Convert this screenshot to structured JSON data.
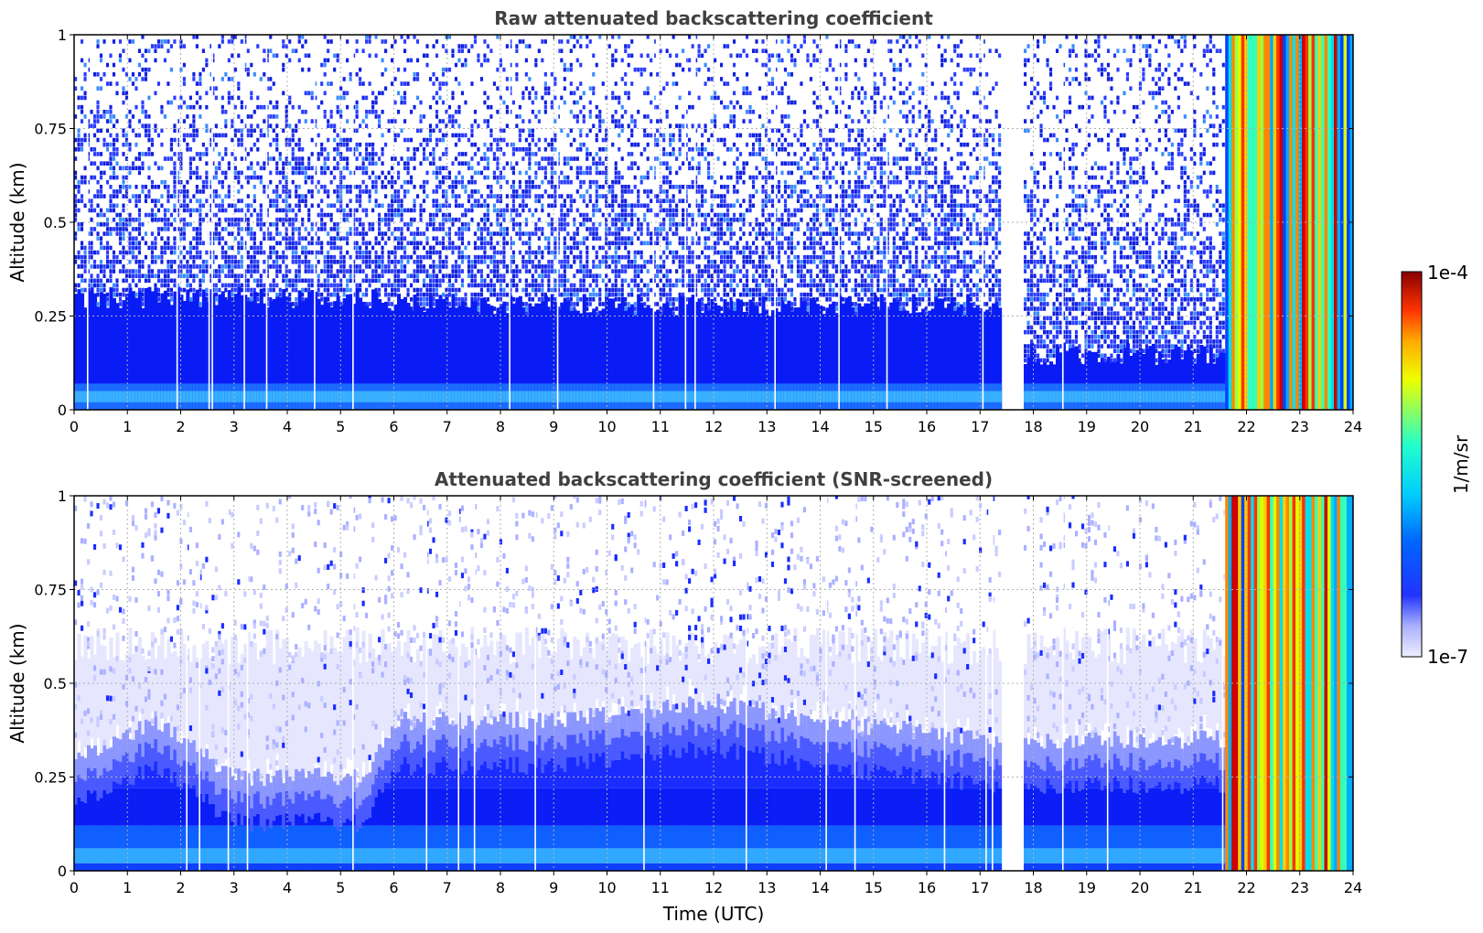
{
  "chart_data": [
    {
      "type": "heatmap",
      "title": "Raw attenuated backscattering coefficient",
      "xlabel": "",
      "ylabel": "Altitude (km)",
      "xlim": [
        0,
        24
      ],
      "ylim": [
        0,
        1
      ],
      "x_ticks": [
        "0",
        "1",
        "2",
        "3",
        "4",
        "5",
        "6",
        "7",
        "8",
        "9",
        "10",
        "11",
        "12",
        "13",
        "14",
        "15",
        "16",
        "17",
        "18",
        "19",
        "20",
        "21",
        "22",
        "23",
        "24"
      ],
      "y_ticks": [
        "0",
        "0.25",
        "0.5",
        "0.75",
        "1"
      ],
      "grid": true,
      "data_gap_hours": [
        17.4,
        17.8
      ],
      "intense_period_start_hour": 21.6,
      "profiles": [
        {
          "time_range": [
            0,
            5.8
          ],
          "dense_layer_top_km": 0.3,
          "sparse_noise_top_km": 1.0
        },
        {
          "time_range": [
            5.8,
            17.4
          ],
          "dense_layer_top_km": 0.28,
          "sparse_noise_top_km": 1.0
        },
        {
          "time_range": [
            17.8,
            21.6
          ],
          "dense_layer_top_km": 0.15,
          "sparse_noise_top_km": 1.0
        },
        {
          "time_range": [
            21.6,
            24
          ],
          "dense_layer_top_km": 1.0,
          "max_value": "1e-4"
        }
      ]
    },
    {
      "type": "heatmap",
      "title": "Attenuated backscattering coefficient (SNR-screened)",
      "xlabel": "Time (UTC)",
      "ylabel": "Altitude (km)",
      "xlim": [
        0,
        24
      ],
      "ylim": [
        0,
        1
      ],
      "x_ticks": [
        "0",
        "1",
        "2",
        "3",
        "4",
        "5",
        "6",
        "7",
        "8",
        "9",
        "10",
        "11",
        "12",
        "13",
        "14",
        "15",
        "16",
        "17",
        "18",
        "19",
        "20",
        "21",
        "22",
        "23",
        "24"
      ],
      "y_ticks": [
        "0",
        "0.25",
        "0.5",
        "0.75",
        "1"
      ],
      "grid": true,
      "data_gap_hours": [
        17.4,
        17.8
      ],
      "intense_period_start_hour": 21.6,
      "boundary_layer_top_km": [
        {
          "x": 0,
          "y": 0.3
        },
        {
          "x": 1.5,
          "y": 0.4
        },
        {
          "x": 3,
          "y": 0.25
        },
        {
          "x": 5.5,
          "y": 0.25
        },
        {
          "x": 6,
          "y": 0.4
        },
        {
          "x": 9,
          "y": 0.4
        },
        {
          "x": 12,
          "y": 0.45
        },
        {
          "x": 14,
          "y": 0.4
        },
        {
          "x": 17.4,
          "y": 0.35
        },
        {
          "x": 17.8,
          "y": 0.35
        },
        {
          "x": 21.6,
          "y": 0.35
        }
      ]
    }
  ],
  "colorbar": {
    "label": "1/m/sr",
    "max_label": "1e-4",
    "min_label": "1e-7",
    "scale": "log",
    "colormap": "jet",
    "range": [
      "1e-7",
      "1e-4"
    ]
  }
}
